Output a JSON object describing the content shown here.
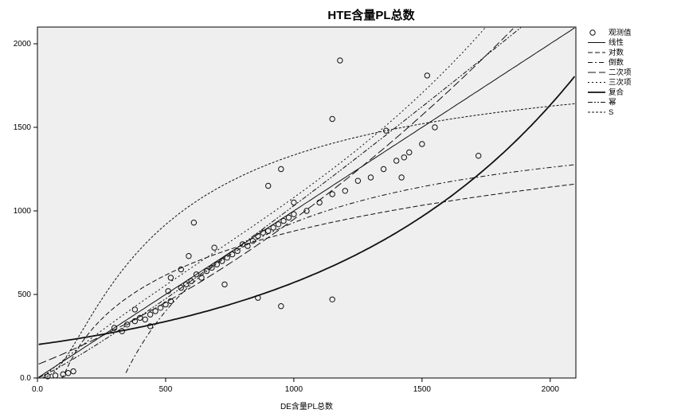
{
  "chart_data": {
    "type": "scatter",
    "title": "HTE含量PL总数",
    "xlabel": "DE含量PL总数",
    "ylabel": "",
    "xlim": [
      0,
      2100
    ],
    "ylim": [
      0,
      2100
    ],
    "x_ticks": [
      {
        "value": 0,
        "label": "0.0"
      },
      {
        "value": 500,
        "label": "500"
      },
      {
        "value": 1000,
        "label": "1000"
      },
      {
        "value": 1500,
        "label": "1500"
      },
      {
        "value": 2000,
        "label": "2000"
      }
    ],
    "y_ticks": [
      {
        "value": 0,
        "label": "0.0"
      },
      {
        "value": 500,
        "label": "500"
      },
      {
        "value": 1000,
        "label": "1000"
      },
      {
        "value": 1500,
        "label": "1500"
      },
      {
        "value": 2000,
        "label": "2000"
      }
    ],
    "grid": false,
    "legend_position": "right",
    "legend": [
      {
        "name": "观测值",
        "style": "marker",
        "key": "obs"
      },
      {
        "name": "线性",
        "style": "solid",
        "key": "linear"
      },
      {
        "name": "对数",
        "style": "dash",
        "key": "log"
      },
      {
        "name": "倒数",
        "style": "dashdot",
        "key": "inverse"
      },
      {
        "name": "二次项",
        "style": "longdash",
        "key": "quadratic"
      },
      {
        "name": "三次项",
        "style": "dot",
        "key": "cubic"
      },
      {
        "name": "复合",
        "style": "double",
        "key": "compound"
      },
      {
        "name": "幂",
        "style": "dashdotdot",
        "key": "power"
      },
      {
        "name": "S",
        "style": "thin",
        "key": "s"
      }
    ],
    "series": [
      {
        "key": "obs",
        "points": [
          [
            40,
            10
          ],
          [
            70,
            15
          ],
          [
            100,
            22
          ],
          [
            120,
            30
          ],
          [
            140,
            40
          ],
          [
            300,
            300
          ],
          [
            330,
            280
          ],
          [
            350,
            320
          ],
          [
            380,
            340
          ],
          [
            400,
            360
          ],
          [
            420,
            350
          ],
          [
            440,
            380
          ],
          [
            460,
            400
          ],
          [
            480,
            420
          ],
          [
            500,
            440
          ],
          [
            520,
            460
          ],
          [
            510,
            520
          ],
          [
            560,
            540
          ],
          [
            580,
            560
          ],
          [
            600,
            580
          ],
          [
            620,
            620
          ],
          [
            640,
            600
          ],
          [
            660,
            640
          ],
          [
            680,
            660
          ],
          [
            700,
            680
          ],
          [
            720,
            700
          ],
          [
            740,
            720
          ],
          [
            760,
            740
          ],
          [
            780,
            760
          ],
          [
            800,
            800
          ],
          [
            820,
            790
          ],
          [
            840,
            820
          ],
          [
            860,
            850
          ],
          [
            880,
            870
          ],
          [
            900,
            880
          ],
          [
            920,
            900
          ],
          [
            940,
            920
          ],
          [
            960,
            940
          ],
          [
            980,
            960
          ],
          [
            1000,
            980
          ],
          [
            1050,
            1000
          ],
          [
            1100,
            1050
          ],
          [
            1150,
            1100
          ],
          [
            1200,
            1120
          ],
          [
            1250,
            1180
          ],
          [
            1300,
            1200
          ],
          [
            1350,
            1250
          ],
          [
            1400,
            1300
          ],
          [
            1450,
            1350
          ],
          [
            1500,
            1400
          ],
          [
            1550,
            1500
          ],
          [
            380,
            410
          ],
          [
            440,
            310
          ],
          [
            520,
            600
          ],
          [
            610,
            930
          ],
          [
            690,
            780
          ],
          [
            730,
            560
          ],
          [
            900,
            1150
          ],
          [
            950,
            1250
          ],
          [
            1000,
            1050
          ],
          [
            1150,
            470
          ],
          [
            1150,
            1550
          ],
          [
            1180,
            1900
          ],
          [
            1360,
            1480
          ],
          [
            1420,
            1200
          ],
          [
            1430,
            1320
          ],
          [
            1520,
            1810
          ],
          [
            1720,
            1330
          ],
          [
            860,
            480
          ],
          [
            950,
            430
          ],
          [
            590,
            730
          ],
          [
            560,
            650
          ]
        ]
      },
      {
        "key": "linear",
        "fn": "linear"
      },
      {
        "key": "log",
        "fn": "log"
      },
      {
        "key": "inverse",
        "fn": "inverse"
      },
      {
        "key": "quadratic",
        "fn": "quadratic"
      },
      {
        "key": "cubic",
        "fn": "cubic"
      },
      {
        "key": "compound",
        "fn": "compound"
      },
      {
        "key": "power",
        "fn": "power"
      },
      {
        "key": "s",
        "fn": "s"
      }
    ]
  },
  "colors": {
    "plot_bg": "#efefef",
    "frame": "#000000",
    "mark": "#111111"
  }
}
